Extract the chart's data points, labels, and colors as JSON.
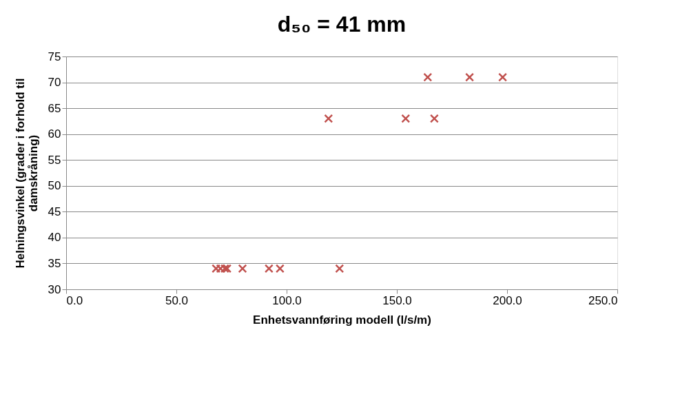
{
  "chart_data": {
    "type": "scatter",
    "title": "d₅₀ = 41 mm",
    "xlabel": "Enhetsvannføring modell (l/s/m)",
    "ylabel": "Helningsvinkel (grader i forhold til damskråning)",
    "x": [
      68,
      70,
      72,
      73,
      80,
      92,
      97,
      124,
      119,
      154,
      167,
      164,
      183,
      198
    ],
    "series": [
      {
        "color": "#c0504d",
        "values": [
          34,
          34,
          34,
          34,
          34,
          34,
          34,
          34,
          63,
          63,
          63,
          71,
          71,
          71
        ]
      }
    ],
    "xlim": [
      0,
      250
    ],
    "xticks": [
      {
        "value": 0,
        "label": "0.0"
      },
      {
        "value": 50,
        "label": "50.0"
      },
      {
        "value": 100,
        "label": "100.0"
      },
      {
        "value": 150,
        "label": "150.0"
      },
      {
        "value": 200,
        "label": "200.0"
      },
      {
        "value": 250,
        "label": "250.0"
      }
    ],
    "ylim": [
      30,
      75
    ],
    "yticks": [
      30,
      35,
      40,
      45,
      50,
      55,
      60,
      65,
      70,
      75
    ],
    "grid": "y",
    "marker": "cross"
  }
}
